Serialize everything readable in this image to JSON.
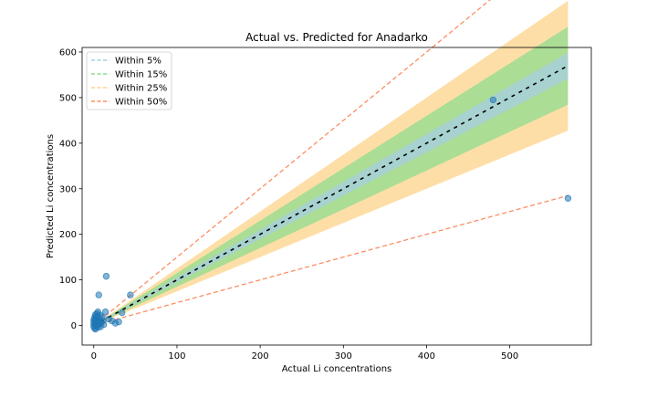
{
  "chart_data": {
    "type": "scatter",
    "title": "Actual vs. Predicted for Anadarko",
    "xlabel": "Actual Li concentrations",
    "ylabel": "Predicted Li concentrations",
    "xlim": [
      -14,
      598
    ],
    "ylim": [
      -43,
      610
    ],
    "xticks": [
      0,
      100,
      200,
      300,
      400,
      500
    ],
    "yticks": [
      0,
      100,
      200,
      300,
      400,
      500,
      600
    ],
    "xtick_labels": [
      "0",
      "100",
      "200",
      "300",
      "400",
      "500"
    ],
    "ytick_labels": [
      "0",
      "100",
      "200",
      "300",
      "400",
      "500",
      "600"
    ],
    "grid": false,
    "legend_position": "top-left",
    "identity_line": {
      "x": [
        0,
        570
      ],
      "y": [
        0,
        570
      ],
      "color": "#000000",
      "style": "dashed"
    },
    "bands": [
      {
        "name": "Within 5%",
        "tolerance": 0.05,
        "color": "#a6cee3"
      },
      {
        "name": "Within 15%",
        "tolerance": 0.15,
        "color": "#8fdc8f"
      },
      {
        "name": "Within 25%",
        "tolerance": 0.25,
        "color": "#fdd38a"
      },
      {
        "name": "Within 50%",
        "tolerance": 0.5,
        "color": "#fc8d62"
      }
    ],
    "scatter_color": "#1f77b4",
    "points": [
      {
        "x": 480,
        "y": 495
      },
      {
        "x": 570,
        "y": 279
      },
      {
        "x": 15,
        "y": 108
      },
      {
        "x": 6,
        "y": 67
      },
      {
        "x": 44,
        "y": 67
      },
      {
        "x": 34,
        "y": 28
      },
      {
        "x": 14,
        "y": 30
      },
      {
        "x": 30,
        "y": 8
      },
      {
        "x": 26,
        "y": 5
      },
      {
        "x": 22,
        "y": 10
      },
      {
        "x": 18,
        "y": 14
      },
      {
        "x": 12,
        "y": 2
      },
      {
        "x": 10,
        "y": 18
      },
      {
        "x": 8,
        "y": 22
      },
      {
        "x": 5,
        "y": 30
      },
      {
        "x": 4,
        "y": 26
      },
      {
        "x": 3,
        "y": 20
      },
      {
        "x": 2,
        "y": 15
      },
      {
        "x": 1,
        "y": 10
      },
      {
        "x": 0,
        "y": 5
      },
      {
        "x": 0,
        "y": -2
      },
      {
        "x": 1,
        "y": -6
      },
      {
        "x": 2,
        "y": -8
      },
      {
        "x": 3,
        "y": 2
      },
      {
        "x": 4,
        "y": 6
      },
      {
        "x": 5,
        "y": 12
      },
      {
        "x": 6,
        "y": 8
      },
      {
        "x": 7,
        "y": 3
      },
      {
        "x": 8,
        "y": -3
      },
      {
        "x": 2,
        "y": 24
      },
      {
        "x": 1,
        "y": 18
      },
      {
        "x": 3,
        "y": 12
      },
      {
        "x": 0,
        "y": 12
      },
      {
        "x": 4,
        "y": 0
      },
      {
        "x": 9,
        "y": 6
      },
      {
        "x": 11,
        "y": 10
      },
      {
        "x": 6,
        "y": 16
      },
      {
        "x": 2,
        "y": 4
      },
      {
        "x": 1,
        "y": 2
      },
      {
        "x": 5,
        "y": -4
      }
    ]
  }
}
